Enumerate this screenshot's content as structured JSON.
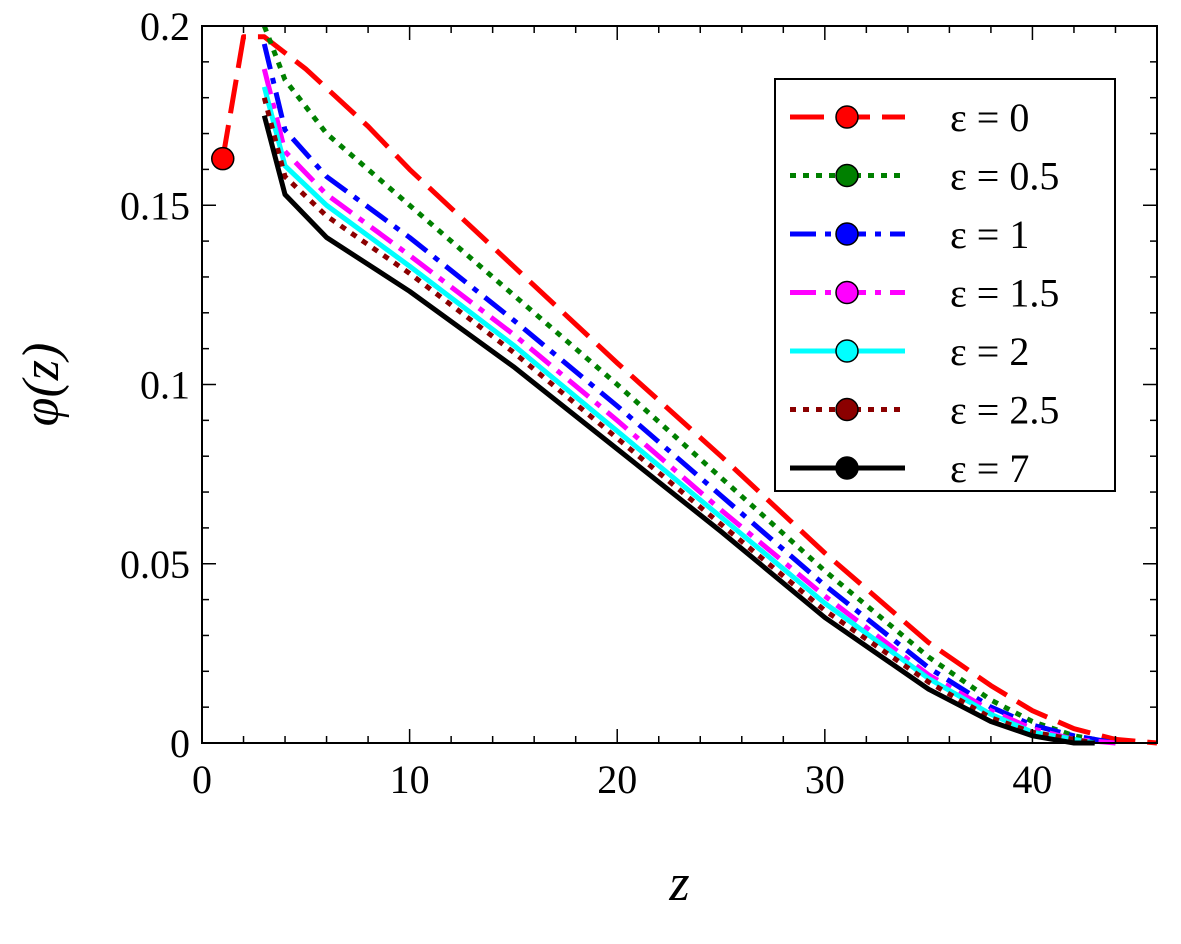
{
  "chart_data": {
    "type": "line",
    "xlabel": "z",
    "ylabel": "φ(z)",
    "xlim": [
      0,
      46
    ],
    "ylim": [
      0,
      0.2
    ],
    "x_ticks": [
      0,
      10,
      20,
      30,
      40
    ],
    "y_ticks": [
      0,
      0.05,
      0.1,
      0.15,
      0.2
    ],
    "x_tick_labels": [
      "0",
      "10",
      "20",
      "30",
      "40"
    ],
    "y_tick_labels": [
      "0",
      "0.05",
      "0.1",
      "0.15",
      "0.2"
    ],
    "grid": false,
    "legend_position": "top-right",
    "series": [
      {
        "name": "ε = 0",
        "color": "#ff0000",
        "dash": "long-dash",
        "x": [
          1,
          2,
          3,
          5,
          8,
          10,
          15,
          20,
          25,
          30,
          35,
          38,
          40,
          42,
          44,
          46
        ],
        "y": [
          0.163,
          0.197,
          0.197,
          0.188,
          0.172,
          0.16,
          0.133,
          0.106,
          0.08,
          0.053,
          0.028,
          0.016,
          0.009,
          0.004,
          0.001,
          0.0
        ]
      },
      {
        "name": "ε = 0.5",
        "color": "#008000",
        "dash": "dot",
        "x": [
          3,
          4,
          6,
          10,
          15,
          20,
          25,
          30,
          35,
          38,
          40,
          42,
          44
        ],
        "y": [
          0.2,
          0.185,
          0.17,
          0.15,
          0.125,
          0.1,
          0.074,
          0.048,
          0.024,
          0.012,
          0.006,
          0.002,
          0.0
        ]
      },
      {
        "name": "ε = 1",
        "color": "#0000ff",
        "dash": "dash-dot",
        "x": [
          3,
          4,
          6,
          10,
          15,
          20,
          25,
          30,
          35,
          38,
          40,
          42,
          44
        ],
        "y": [
          0.195,
          0.171,
          0.158,
          0.141,
          0.118,
          0.094,
          0.069,
          0.044,
          0.021,
          0.01,
          0.005,
          0.002,
          0.0
        ]
      },
      {
        "name": "ε = 1.5",
        "color": "#ff00ff",
        "dash": "dash-dot",
        "x": [
          3,
          4,
          6,
          10,
          15,
          20,
          25,
          30,
          35,
          38,
          40,
          42,
          44
        ],
        "y": [
          0.188,
          0.165,
          0.153,
          0.136,
          0.114,
          0.09,
          0.065,
          0.041,
          0.019,
          0.009,
          0.004,
          0.001,
          0.0
        ]
      },
      {
        "name": "ε = 2",
        "color": "#00ffff",
        "dash": "solid",
        "x": [
          3,
          4,
          6,
          10,
          15,
          20,
          25,
          30,
          35,
          38,
          40,
          42,
          43
        ],
        "y": [
          0.183,
          0.161,
          0.15,
          0.133,
          0.111,
          0.087,
          0.063,
          0.039,
          0.018,
          0.008,
          0.003,
          0.001,
          0.0
        ]
      },
      {
        "name": "ε = 2.5",
        "color": "#8b0000",
        "dash": "dot",
        "x": [
          3,
          4,
          6,
          10,
          15,
          20,
          25,
          30,
          35,
          38,
          40,
          42,
          43
        ],
        "y": [
          0.18,
          0.158,
          0.147,
          0.131,
          0.109,
          0.085,
          0.061,
          0.037,
          0.017,
          0.007,
          0.003,
          0.001,
          0.0
        ]
      },
      {
        "name": "ε = 7",
        "color": "#000000",
        "dash": "solid",
        "x": [
          3,
          4,
          6,
          10,
          15,
          20,
          25,
          30,
          35,
          38,
          40,
          42,
          43
        ],
        "y": [
          0.175,
          0.153,
          0.141,
          0.126,
          0.105,
          0.082,
          0.059,
          0.035,
          0.015,
          0.006,
          0.002,
          0.0,
          0.0
        ]
      }
    ]
  }
}
